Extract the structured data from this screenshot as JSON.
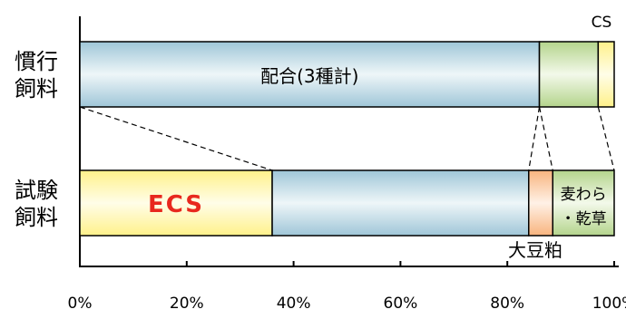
{
  "chart_data": {
    "type": "bar",
    "orientation": "horizontal",
    "stacked": true,
    "xlim": [
      0,
      100
    ],
    "x_ticks": [
      "0%",
      "20%",
      "40%",
      "60%",
      "80%",
      "100%"
    ],
    "x_tick_values": [
      0,
      20,
      40,
      60,
      80,
      100
    ],
    "grid": false,
    "rows": [
      {
        "label_line1": "慣行",
        "label_line2": "飼料",
        "segments": [
          {
            "label": "配合(3種計)",
            "start": 0,
            "end": 86,
            "color": "#b8d6e4",
            "label_color": "#000000"
          },
          {
            "label": "",
            "start": 86,
            "end": 97,
            "color": "#c9e0a8"
          },
          {
            "label": "CS",
            "start": 97,
            "end": 100,
            "color": "#fff6a8"
          }
        ]
      },
      {
        "label_line1": "試験",
        "label_line2": "飼料",
        "segments": [
          {
            "label": "ECS",
            "start": 0,
            "end": 36,
            "color": "#fff6a8",
            "label_color": "#e8281e"
          },
          {
            "label": "",
            "start": 36,
            "end": 84,
            "color": "#b8d6e4"
          },
          {
            "label": "大豆粕",
            "start": 84,
            "end": 88.5,
            "color": "#fbc9a0"
          },
          {
            "label": "麦わら・乾草",
            "label_line1": "麦わら",
            "label_line2": "・乾草",
            "start": 88.5,
            "end": 100,
            "color": "#c9e0a8"
          }
        ]
      }
    ]
  }
}
